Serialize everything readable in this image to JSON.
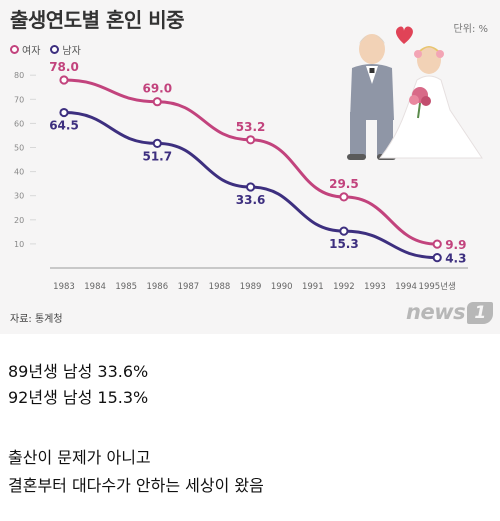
{
  "title": "출생연도별 혼인 비중",
  "unit": "단위: %",
  "source": "자료: 통계청",
  "logo": {
    "text": "news",
    "badge": "1"
  },
  "colors": {
    "female": "#c2437d",
    "male": "#3d2f7f",
    "axis": "#9a9a9a",
    "grid": "#d8d8d8"
  },
  "chart_data": {
    "type": "line",
    "title": "출생연도별 혼인 비중",
    "unit": "단위: %",
    "x_categories": [
      "1983",
      "1984",
      "1985",
      "1986",
      "1987",
      "1988",
      "1989",
      "1990",
      "1991",
      "1992",
      "1993",
      "1994",
      "1995년생"
    ],
    "y_ticks": [
      10,
      20,
      30,
      40,
      50,
      60,
      70,
      80
    ],
    "ylim": [
      0,
      85
    ],
    "grid": false,
    "legend": "top-left",
    "series": [
      {
        "name": "여자",
        "color": "#c2437d",
        "points": [
          {
            "x": "1983",
            "y": 78.0,
            "label": "78.0"
          },
          {
            "x": "1986",
            "y": 69.0,
            "label": "69.0"
          },
          {
            "x": "1989",
            "y": 53.2,
            "label": "53.2"
          },
          {
            "x": "1992",
            "y": 29.5,
            "label": "29.5"
          },
          {
            "x": "1995년생",
            "y": 9.9,
            "label": "9.9"
          }
        ]
      },
      {
        "name": "남자",
        "color": "#3d2f7f",
        "points": [
          {
            "x": "1983",
            "y": 64.5,
            "label": "64.5"
          },
          {
            "x": "1986",
            "y": 51.7,
            "label": "51.7"
          },
          {
            "x": "1989",
            "y": 33.6,
            "label": "33.6"
          },
          {
            "x": "1992",
            "y": 15.3,
            "label": "15.3"
          },
          {
            "x": "1995년생",
            "y": 4.3,
            "label": "4.3"
          }
        ]
      }
    ]
  },
  "post": {
    "lines": [
      "89년생 남성 33.6%",
      "92년생 남성 15.3%",
      "",
      "출산이 문제가 아니고",
      "결혼부터 대다수가 안하는 세상이 왔음"
    ]
  }
}
